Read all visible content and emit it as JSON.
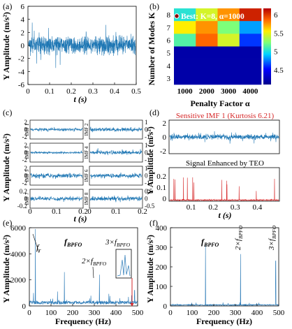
{
  "colors": {
    "signal": "#1f77b4",
    "teo": "#d62728",
    "annot": "#d62728",
    "best_marker": "#8b0000"
  },
  "panels": {
    "a": {
      "label": "(a)",
      "ylabel": "Y Amplitude (m/s²)",
      "xlabel": "t (s)",
      "xticks": [
        "0",
        "0.1",
        "0.2",
        "0.3",
        "0.4",
        "0.5"
      ],
      "yticks": [
        "6",
        "4",
        "2",
        "0",
        "-2",
        "-4",
        "-6"
      ]
    },
    "b": {
      "label": "(b)",
      "title": "Best: K=8, α=1000",
      "xlabel": "Penalty Factor α",
      "ylabel": "Number of Modes K",
      "xticks": [
        "1000",
        "2000",
        "3000",
        "4000"
      ],
      "yticks": [
        "8",
        "7",
        "6",
        "5",
        "4",
        "3"
      ],
      "cbticks": [
        "6",
        "5.5",
        "5",
        "4.5"
      ]
    },
    "c": {
      "label": "(c)",
      "ylabel": "Y Amplitude (m/s²)",
      "xlabel": "t (s)",
      "imfs": [
        "IMF 1",
        "IMF 2",
        "IMF 3",
        "IMF 4",
        "IMF 5",
        "IMF 6",
        "IMF 7",
        "IMF 8"
      ],
      "xticks": [
        "0",
        "0.1",
        "0.2"
      ],
      "yticks_left": [
        [
          "2",
          "0",
          "-2"
        ],
        [
          "2",
          "0",
          "-2"
        ],
        [
          "2",
          "0",
          "-2"
        ],
        [
          "0.2",
          "0",
          "-0.2"
        ]
      ],
      "yticks_right": [
        [
          "1",
          "0",
          "-1"
        ],
        [
          "1",
          "0",
          "-1"
        ],
        [
          "1",
          "0",
          "-1"
        ],
        [
          "0.5",
          "0",
          "-0.5"
        ]
      ]
    },
    "d": {
      "label": "(d)",
      "title1": "Sensitive IMF 1 (Kurtosis 6.21)",
      "title2": "Signal Enhanced by TEO",
      "ylabel": "Y Amplitude (m/s²)",
      "xlabel": "t (s)",
      "yticks_top": [
        "2",
        "0",
        "-2"
      ],
      "yticks_bot": [
        "0.2",
        "0.1",
        "0"
      ],
      "xticks": [
        "0.1",
        "0.2",
        "0.3",
        "0.4"
      ]
    },
    "e": {
      "label": "(e)",
      "ylabel": "Y Amplitude (m/s²)",
      "xlabel": "Frequency (Hz)",
      "xticks": [
        "0",
        "100",
        "200",
        "300",
        "400",
        "500"
      ],
      "yticks": [
        "6000",
        "4000",
        "2000",
        "0"
      ],
      "ann_fr": "f",
      "ann_fr_sub": "r",
      "ann_bpfo": "f",
      "ann_bpfo_sub": "BPFO",
      "ann_2": "2×f",
      "ann_2_sub": "BPFO",
      "ann_3": "3×f",
      "ann_3_sub": "BPFO"
    },
    "f": {
      "label": "(f)",
      "ylabel": "Y Amplitude (m/s²)",
      "xlabel": "Frequency (Hz)",
      "xticks": [
        "0",
        "100",
        "200",
        "300",
        "400",
        "500"
      ],
      "yticks": [
        "400",
        "300",
        "200",
        "100",
        "0"
      ],
      "ann_1": "f",
      "ann_1_sub": "BPFO",
      "ann_2": "2×f",
      "ann_2_sub": "BPFO",
      "ann_3": "3×f",
      "ann_3_sub": "BPFO"
    }
  },
  "chart_data": [
    {
      "type": "line",
      "panel": "a",
      "x_range": [
        0,
        0.5
      ],
      "ylim": [
        -6,
        6
      ],
      "note_values": "vibration signal, amplitude mostly within ±4"
    },
    {
      "type": "heatmap",
      "panel": "b",
      "x": [
        1000,
        2000,
        3000,
        4000
      ],
      "y": [
        8,
        7,
        6,
        5,
        4,
        3
      ],
      "values": [
        [
          5.1,
          5.5,
          5.8,
          6.1
        ],
        [
          5.6,
          5.8,
          5.3,
          4.9
        ],
        [
          5.2,
          5.9,
          5.5,
          4.7
        ],
        [
          4.3,
          4.3,
          4.3,
          4.3
        ],
        [
          4.3,
          4.3,
          4.3,
          4.3
        ],
        [
          4.3,
          4.3,
          4.3,
          4.3
        ]
      ],
      "colorbar_range": [
        4.2,
        6.2
      ],
      "best": {
        "K": 8,
        "alpha": 1000
      }
    },
    {
      "type": "line",
      "panel": "c",
      "series": [
        "IMF 1",
        "IMF 2",
        "IMF 3",
        "IMF 4",
        "IMF 5",
        "IMF 6",
        "IMF 7",
        "IMF 8"
      ],
      "x_range": [
        0,
        0.2
      ]
    },
    {
      "type": "line",
      "panel": "d",
      "series": [
        "Sensitive IMF 1",
        "Signal Enhanced by TEO"
      ],
      "x_range": [
        0,
        0.5
      ]
    },
    {
      "type": "line",
      "panel": "e",
      "x_range": [
        0,
        500
      ],
      "ylim": [
        0,
        6000
      ],
      "peaks": [
        {
          "x": 28,
          "y": 5900
        },
        {
          "x": 162,
          "y": 2600
        },
        {
          "x": 324,
          "y": 2400
        },
        {
          "x": 486,
          "y": 1200
        }
      ]
    },
    {
      "type": "line",
      "panel": "f",
      "x_range": [
        0,
        500
      ],
      "ylim": [
        0,
        400
      ],
      "peaks": [
        {
          "x": 162,
          "y": 310
        },
        {
          "x": 324,
          "y": 265
        },
        {
          "x": 486,
          "y": 230
        }
      ]
    }
  ]
}
